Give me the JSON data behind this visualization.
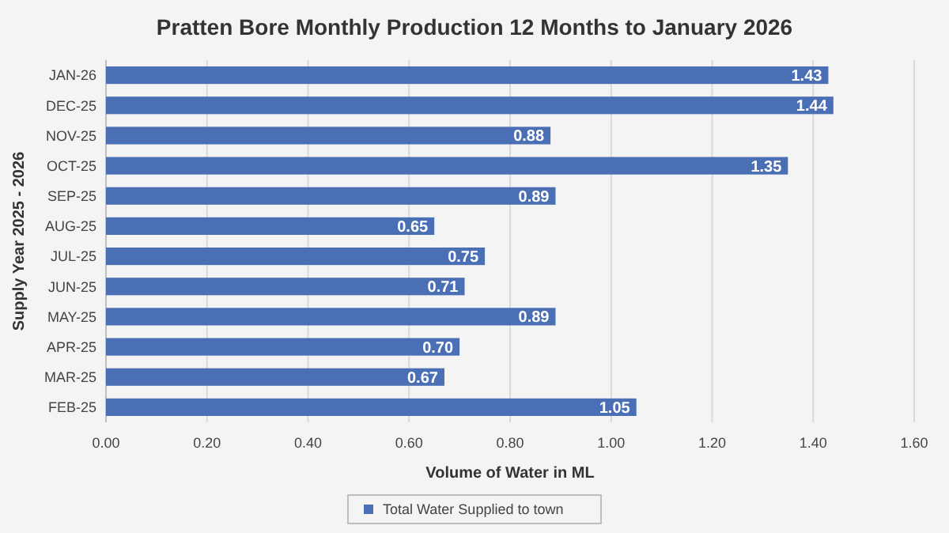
{
  "chart_data": {
    "type": "bar",
    "orientation": "horizontal",
    "title": "Pratten Bore Monthly Production 12 Months to January 2026",
    "xlabel": "Volume of Water in ML",
    "ylabel": "Supply Year 2025 - 2026",
    "categories": [
      "JAN-26",
      "DEC-25",
      "NOV-25",
      "OCT-25",
      "SEP-25",
      "AUG-25",
      "JUL-25",
      "JUN-25",
      "MAY-25",
      "APR-25",
      "MAR-25",
      "FEB-25"
    ],
    "series": [
      {
        "name": "Total Water Supplied to town",
        "color": "#4a6fb5",
        "values": [
          1.43,
          1.44,
          0.88,
          1.35,
          0.89,
          0.65,
          0.75,
          0.71,
          0.89,
          0.7,
          0.67,
          1.05
        ],
        "value_labels": [
          "1.43",
          "1.44",
          "0.88",
          "1.35",
          "0.89",
          "0.65",
          "0.75",
          "0.71",
          "0.89",
          "0.70",
          "0.67",
          "1.05"
        ]
      }
    ],
    "xlim": [
      0,
      1.6
    ],
    "xticks": [
      {
        "value": 0,
        "label": "0.00"
      },
      {
        "value": 0.2,
        "label": "0.20"
      },
      {
        "value": 0.4,
        "label": "0.40"
      },
      {
        "value": 0.6,
        "label": "0.60"
      },
      {
        "value": 0.8,
        "label": "0.80"
      },
      {
        "value": 1,
        "label": "1.00"
      },
      {
        "value": 1.2,
        "label": "1.20"
      },
      {
        "value": 1.4,
        "label": "1.40"
      },
      {
        "value": 1.6,
        "label": "1.60"
      }
    ],
    "grid": "x",
    "legend": "bottom"
  }
}
